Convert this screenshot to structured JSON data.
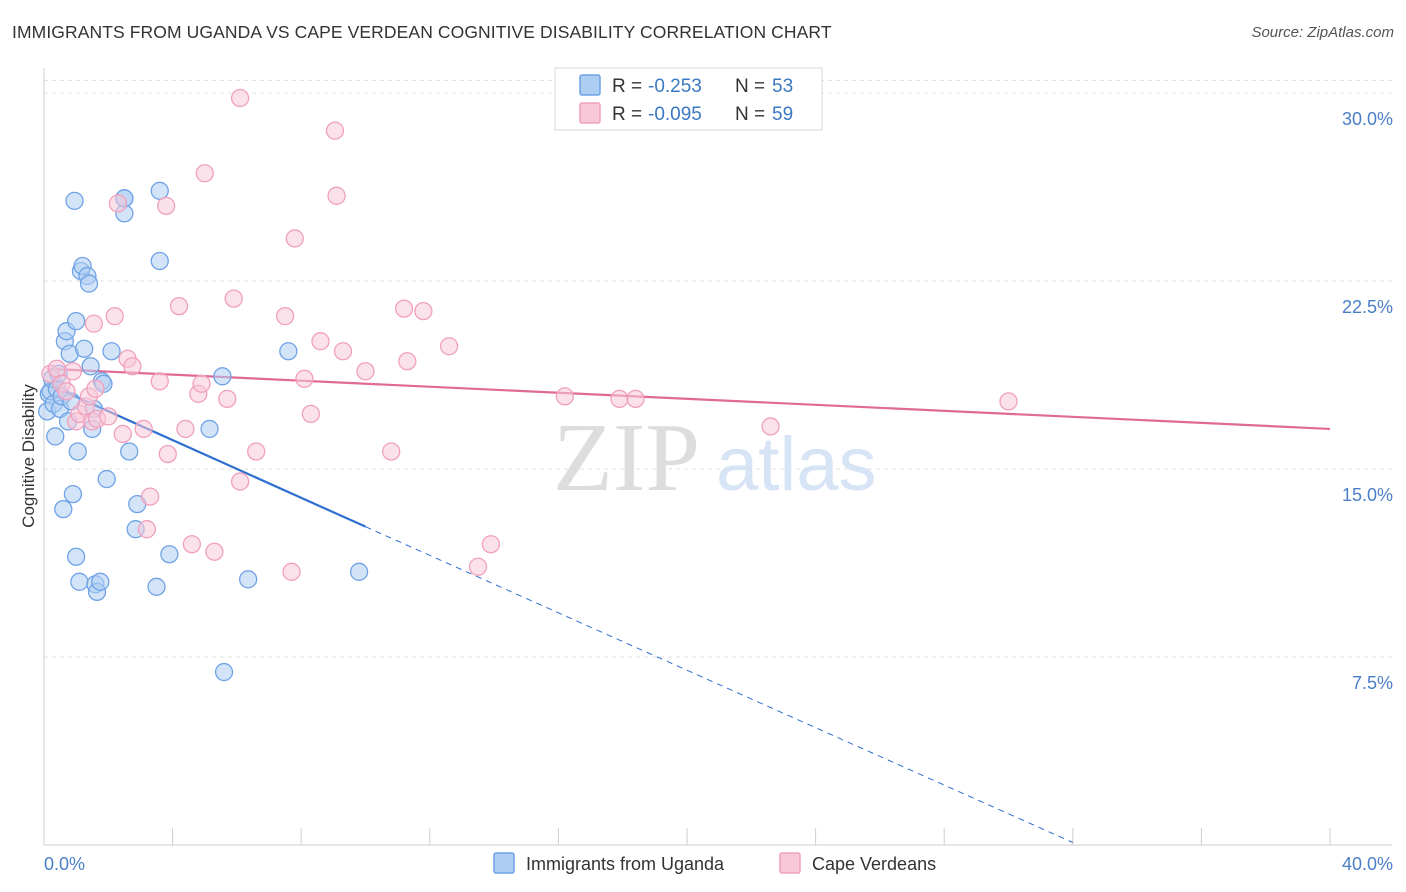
{
  "title": "IMMIGRANTS FROM UGANDA VS CAPE VERDEAN COGNITIVE DISABILITY CORRELATION CHART",
  "source": "Source: ZipAtlas.com",
  "watermark": {
    "zip": "ZIP",
    "atlas": "atlas"
  },
  "chart_data": {
    "type": "scatter",
    "xlabel": "",
    "ylabel": "Cognitive Disability",
    "xlim": [
      0,
      40
    ],
    "ylim": [
      0,
      31
    ],
    "x_tick_labels": [
      {
        "v": 0,
        "label": "0.0%"
      },
      {
        "v": 40,
        "label": "40.0%"
      }
    ],
    "y_ticks": [
      {
        "v": 7.5,
        "label": "7.5%"
      },
      {
        "v": 15,
        "label": "15.0%"
      },
      {
        "v": 22.5,
        "label": "22.5%"
      },
      {
        "v": 30,
        "label": "30.0%"
      }
    ],
    "grid": true,
    "legend_position": "top-center",
    "series": [
      {
        "name": "Immigrants from Uganda",
        "color": "#6fa3e6",
        "fill": "#aecdf3",
        "R_label": "R = ",
        "R": "-0.253",
        "N_label": "N = ",
        "N": "53",
        "trend": {
          "x0": 0.1,
          "y0": 18.4,
          "x1": 10,
          "y1": 12.7,
          "dash_to_x": 32,
          "dash_to_y": 0.1,
          "color": "#2f6fcf"
        },
        "points": [
          [
            0.1,
            17.3
          ],
          [
            0.15,
            18.0
          ],
          [
            0.2,
            18.1
          ],
          [
            0.25,
            18.6
          ],
          [
            0.3,
            17.6
          ],
          [
            0.35,
            16.3
          ],
          [
            0.4,
            18.2
          ],
          [
            0.45,
            18.8
          ],
          [
            0.5,
            17.4
          ],
          [
            0.55,
            17.9
          ],
          [
            0.6,
            13.4
          ],
          [
            0.65,
            20.1
          ],
          [
            0.7,
            20.5
          ],
          [
            0.75,
            16.9
          ],
          [
            0.8,
            19.6
          ],
          [
            0.85,
            17.7
          ],
          [
            0.9,
            14.0
          ],
          [
            0.95,
            25.7
          ],
          [
            1.0,
            20.9
          ],
          [
            1.05,
            15.7
          ],
          [
            1.0,
            11.5
          ],
          [
            1.1,
            10.5
          ],
          [
            1.15,
            22.9
          ],
          [
            1.2,
            23.1
          ],
          [
            1.25,
            19.8
          ],
          [
            1.35,
            22.7
          ],
          [
            1.4,
            22.4
          ],
          [
            1.45,
            19.1
          ],
          [
            1.5,
            16.6
          ],
          [
            1.55,
            17.4
          ],
          [
            1.6,
            10.4
          ],
          [
            1.65,
            10.1
          ],
          [
            1.75,
            10.5
          ],
          [
            1.8,
            18.5
          ],
          [
            1.85,
            18.4
          ],
          [
            1.95,
            14.6
          ],
          [
            2.1,
            19.7
          ],
          [
            2.5,
            25.2
          ],
          [
            2.5,
            25.8
          ],
          [
            2.65,
            15.7
          ],
          [
            2.85,
            12.6
          ],
          [
            2.9,
            13.6
          ],
          [
            3.5,
            10.3
          ],
          [
            3.6,
            23.3
          ],
          [
            3.6,
            26.1
          ],
          [
            3.9,
            11.6
          ],
          [
            5.15,
            16.6
          ],
          [
            5.55,
            18.7
          ],
          [
            5.6,
            6.9
          ],
          [
            6.35,
            10.6
          ],
          [
            7.6,
            19.7
          ],
          [
            9.8,
            10.9
          ],
          [
            2.5,
            25.8
          ]
        ]
      },
      {
        "name": "Cape Verdeans",
        "color": "#f0a0bd",
        "fill": "#f8c8d8",
        "R_label": "R = ",
        "R": "-0.095",
        "N_label": "N = ",
        "N": "59",
        "trend": {
          "x0": 0.1,
          "y0": 19.0,
          "x1": 40,
          "y1": 16.6,
          "color": "#e06a95"
        },
        "points": [
          [
            0.2,
            18.8
          ],
          [
            0.4,
            19.0
          ],
          [
            0.55,
            18.4
          ],
          [
            0.7,
            18.1
          ],
          [
            0.9,
            18.9
          ],
          [
            1.0,
            16.9
          ],
          [
            1.1,
            17.2
          ],
          [
            1.3,
            17.5
          ],
          [
            1.4,
            17.9
          ],
          [
            1.5,
            16.9
          ],
          [
            1.55,
            20.8
          ],
          [
            1.65,
            17.0
          ],
          [
            2.0,
            17.1
          ],
          [
            2.2,
            21.1
          ],
          [
            2.3,
            25.6
          ],
          [
            2.45,
            16.4
          ],
          [
            2.6,
            19.4
          ],
          [
            2.75,
            19.1
          ],
          [
            3.1,
            16.6
          ],
          [
            3.2,
            12.6
          ],
          [
            3.3,
            13.9
          ],
          [
            3.6,
            18.5
          ],
          [
            3.8,
            25.5
          ],
          [
            3.85,
            15.6
          ],
          [
            4.2,
            21.5
          ],
          [
            4.4,
            16.6
          ],
          [
            4.6,
            12.0
          ],
          [
            4.8,
            18.0
          ],
          [
            4.9,
            18.4
          ],
          [
            5.0,
            26.8
          ],
          [
            5.3,
            11.7
          ],
          [
            5.7,
            17.8
          ],
          [
            5.9,
            21.8
          ],
          [
            6.1,
            14.5
          ],
          [
            6.6,
            15.7
          ],
          [
            6.1,
            29.8
          ],
          [
            7.5,
            21.1
          ],
          [
            7.7,
            10.9
          ],
          [
            7.8,
            24.2
          ],
          [
            8.1,
            18.6
          ],
          [
            8.3,
            17.2
          ],
          [
            8.6,
            20.1
          ],
          [
            9.05,
            28.5
          ],
          [
            9.1,
            25.9
          ],
          [
            9.3,
            19.7
          ],
          [
            10.0,
            18.9
          ],
          [
            10.8,
            15.7
          ],
          [
            11.2,
            21.4
          ],
          [
            11.3,
            19.3
          ],
          [
            11.8,
            21.3
          ],
          [
            12.6,
            19.9
          ],
          [
            13.5,
            11.1
          ],
          [
            13.9,
            12.0
          ],
          [
            16.2,
            17.9
          ],
          [
            17.9,
            17.8
          ],
          [
            18.4,
            17.8
          ],
          [
            22.6,
            16.7
          ],
          [
            30.0,
            17.7
          ],
          [
            1.6,
            18.2
          ]
        ]
      }
    ]
  }
}
